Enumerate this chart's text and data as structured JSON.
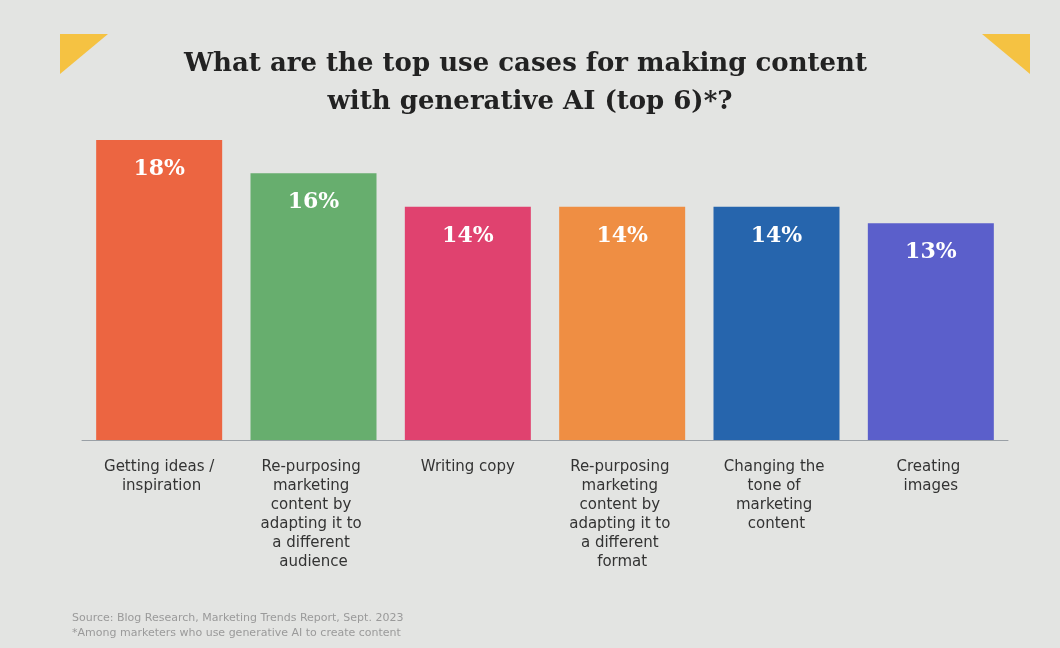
{
  "chart_data": {
    "type": "bar",
    "title": "What are the top use cases for making content with generative AI (top 6)*?",
    "categories": [
      "Getting ideas / inspiration",
      "Re-purposing marketing content by adapting it to a different audience",
      "Writing copy",
      "Re-purposing marketing content by adapting it to a different format",
      "Changing the tone of marketing content",
      "Creating images"
    ],
    "values": [
      18,
      16,
      14,
      14,
      14,
      13
    ],
    "colors": [
      "#ec6541",
      "#67ae6e",
      "#e0426f",
      "#ef8e43",
      "#2665ad",
      "#5b5fcb"
    ],
    "value_labels": [
      "18%",
      "16%",
      "14%",
      "14%",
      "14%",
      "13%"
    ],
    "annotations": [
      "Source: Blog Research, Marketing Trends Report, Sept. 2023",
      "*Among marketers who use generative AI to create content"
    ]
  }
}
